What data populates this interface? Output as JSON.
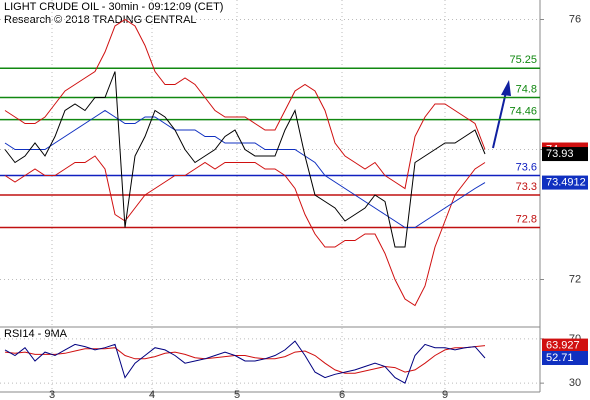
{
  "chart_data": [
    {
      "type": "line",
      "title": "LIGHT CRUDE OIL - 30min - 09:12:09 (CET)",
      "subtitle": "Research © 2018 TRADING CENTRAL",
      "x": [
        0,
        1,
        2,
        3,
        4,
        5,
        6,
        7,
        8,
        9,
        10,
        11,
        12,
        13,
        14,
        15,
        16,
        17,
        18,
        19,
        20,
        21,
        22,
        23,
        24,
        25,
        26,
        27,
        28,
        29,
        30,
        31,
        32,
        33,
        34,
        35,
        36,
        37,
        38,
        39,
        40,
        41,
        42,
        43,
        44,
        45,
        46,
        47,
        48
      ],
      "xlim": [
        -0.5,
        53.5
      ],
      "xticks": [
        {
          "value": 4.7,
          "label": "3"
        },
        {
          "value": 14.7,
          "label": "4"
        },
        {
          "value": 23.2,
          "label": "5"
        },
        {
          "value": 33.7,
          "label": "6"
        },
        {
          "value": 44,
          "label": "9"
        }
      ],
      "ylim": [
        71.3,
        76.3
      ],
      "yticks": [
        72,
        74,
        76
      ],
      "grid": true,
      "series": [
        {
          "color": "#d01010",
          "tag_last": true,
          "values": [
            74.6,
            74.5,
            74.4,
            74.4,
            74.5,
            74.7,
            74.9,
            75.0,
            75.1,
            75.2,
            75.5,
            75.9,
            76.0,
            75.9,
            75.6,
            75.2,
            75.0,
            75.0,
            75.1,
            75.0,
            74.8,
            74.6,
            74.5,
            74.5,
            74.5,
            74.4,
            74.3,
            74.3,
            74.6,
            74.9,
            75.0,
            74.9,
            74.6,
            74.1,
            73.9,
            73.8,
            73.7,
            73.8,
            73.6,
            73.5,
            73.4,
            74.2,
            74.5,
            74.7,
            74.7,
            74.6,
            74.5,
            74.4,
            74
          ]
        },
        {
          "color": "#d01010",
          "values": [
            73.6,
            73.5,
            73.6,
            73.7,
            73.6,
            73.6,
            73.7,
            73.8,
            73.8,
            73.9,
            73.7,
            73.0,
            72.9,
            73.1,
            73.3,
            73.4,
            73.5,
            73.6,
            73.6,
            73.7,
            73.8,
            73.7,
            73.8,
            73.8,
            73.8,
            73.8,
            73.7,
            73.7,
            73.6,
            73.4,
            73.0,
            72.7,
            72.5,
            72.5,
            72.6,
            72.6,
            72.7,
            72.7,
            72.4,
            72.0,
            71.7,
            71.6,
            71.9,
            72.5,
            72.9,
            73.3,
            73.5,
            73.7,
            73.8
          ]
        },
        {
          "color": "#1030c0",
          "tag_last": true,
          "values": [
            74.1,
            74.0,
            74.0,
            74.0,
            74.0,
            74.1,
            74.2,
            74.3,
            74.4,
            74.5,
            74.6,
            74.5,
            74.4,
            74.4,
            74.5,
            74.5,
            74.4,
            74.3,
            74.3,
            74.3,
            74.2,
            74.2,
            74.1,
            74.1,
            74.1,
            74.1,
            74.0,
            74.0,
            74.0,
            74.0,
            73.9,
            73.8,
            73.6,
            73.5,
            73.4,
            73.3,
            73.2,
            73.1,
            73.0,
            72.9,
            72.8,
            72.8,
            72.9,
            73.0,
            73.1,
            73.2,
            73.3,
            73.4,
            73.4912
          ]
        },
        {
          "color": "#000000",
          "tag_last": true,
          "values": [
            74.0,
            73.8,
            73.9,
            74.1,
            73.9,
            74.2,
            74.6,
            74.7,
            74.6,
            74.8,
            74.8,
            75.2,
            72.8,
            73.9,
            74.2,
            74.6,
            74.5,
            74.3,
            74.0,
            73.8,
            73.9,
            74.0,
            74.2,
            74.3,
            74.0,
            73.9,
            73.9,
            73.9,
            74.3,
            74.6,
            73.9,
            73.3,
            73.2,
            73.1,
            72.9,
            73.0,
            73.1,
            73.3,
            73.2,
            72.5,
            72.5,
            73.8,
            73.9,
            74.0,
            74.1,
            74.1,
            74.2,
            74.3,
            73.93
          ]
        }
      ],
      "levels": [
        {
          "value": 75.25,
          "color": "#118811"
        },
        {
          "value": 74.8,
          "color": "#118811"
        },
        {
          "value": 74.46,
          "color": "#118811"
        },
        {
          "value": 73.6,
          "color": "#1020c0"
        },
        {
          "value": 73.3,
          "color": "#c01010"
        },
        {
          "value": 72.8,
          "color": "#c01010"
        }
      ]
    },
    {
      "type": "line",
      "title": "RSI14 - 9MA",
      "x": [
        0,
        1,
        2,
        3,
        4,
        5,
        6,
        7,
        8,
        9,
        10,
        11,
        12,
        13,
        14,
        15,
        16,
        17,
        18,
        19,
        20,
        21,
        22,
        23,
        24,
        25,
        26,
        27,
        28,
        29,
        30,
        31,
        32,
        33,
        34,
        35,
        36,
        37,
        38,
        39,
        40,
        41,
        42,
        43,
        44,
        45,
        46,
        47,
        48
      ],
      "xlim": [
        -0.5,
        53.5
      ],
      "ylim": [
        22,
        78
      ],
      "yticks": [
        30,
        70
      ],
      "grid": true,
      "series": [
        {
          "color": "#d01010",
          "tag_last": true,
          "values": [
            58,
            57,
            58,
            56,
            56,
            56,
            57,
            59,
            61,
            61,
            61,
            62,
            55,
            52,
            52,
            54,
            57,
            58,
            56,
            53,
            52,
            53,
            54,
            55,
            55,
            53,
            52,
            52,
            54,
            58,
            59,
            55,
            48,
            42,
            39,
            39,
            41,
            43,
            45,
            44,
            40,
            42,
            48,
            55,
            60,
            62,
            62,
            63,
            63.927
          ]
        },
        {
          "color": "#000080",
          "tag_last": true,
          "tag_color": "#1030c0",
          "values": [
            60,
            55,
            62,
            50,
            58,
            55,
            60,
            65,
            63,
            60,
            62,
            65,
            35,
            48,
            55,
            62,
            60,
            55,
            48,
            50,
            52,
            55,
            58,
            55,
            50,
            50,
            52,
            55,
            60,
            68,
            55,
            40,
            35,
            38,
            40,
            42,
            45,
            48,
            45,
            35,
            30,
            55,
            65,
            62,
            62,
            60,
            62,
            63,
            52.71
          ]
        }
      ]
    }
  ]
}
